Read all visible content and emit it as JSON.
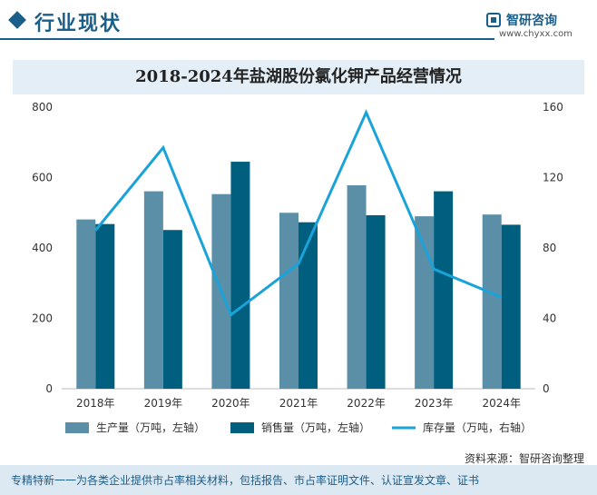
{
  "header": {
    "section_title": "行业现状",
    "brand_name": "智研咨询",
    "brand_url": "www.chyxx.com"
  },
  "colors": {
    "production": "#5b8fa8",
    "sales": "#005f7f",
    "inventory": "#1aa3d9",
    "accent": "#1a5e8a"
  },
  "chart_data": {
    "type": "bar",
    "title": "2018-2024年盐湖股份氯化钾产品经营情况",
    "categories": [
      "2018年",
      "2019年",
      "2020年",
      "2021年",
      "2022年",
      "2023年",
      "2024年"
    ],
    "series": [
      {
        "name": "生产量（万吨，左轴）",
        "type": "bar",
        "axis": "left",
        "values": [
          481,
          561,
          553,
          500,
          578,
          490,
          495
        ]
      },
      {
        "name": "销售量（万吨，左轴）",
        "type": "bar",
        "axis": "left",
        "values": [
          468,
          451,
          645,
          473,
          493,
          561,
          466
        ]
      },
      {
        "name": "库存量（万吨，右轴）",
        "type": "line",
        "axis": "right",
        "values": [
          90,
          137,
          42,
          71,
          157,
          68,
          52
        ]
      }
    ],
    "y_left": {
      "range": [
        0,
        800
      ],
      "ticks": [
        "0",
        "200",
        "400",
        "600",
        "800"
      ]
    },
    "y_right": {
      "range": [
        0,
        160
      ],
      "ticks": [
        "0",
        "40",
        "80",
        "120",
        "160"
      ]
    },
    "grid": false,
    "legend_position": "bottom"
  },
  "footer": {
    "source": "资料来源：智研咨询整理",
    "tagline": "专精特新一一为各类企业提供市占率相关材料，包括报告、市占率证明文件、认证宣发文章、证书"
  }
}
